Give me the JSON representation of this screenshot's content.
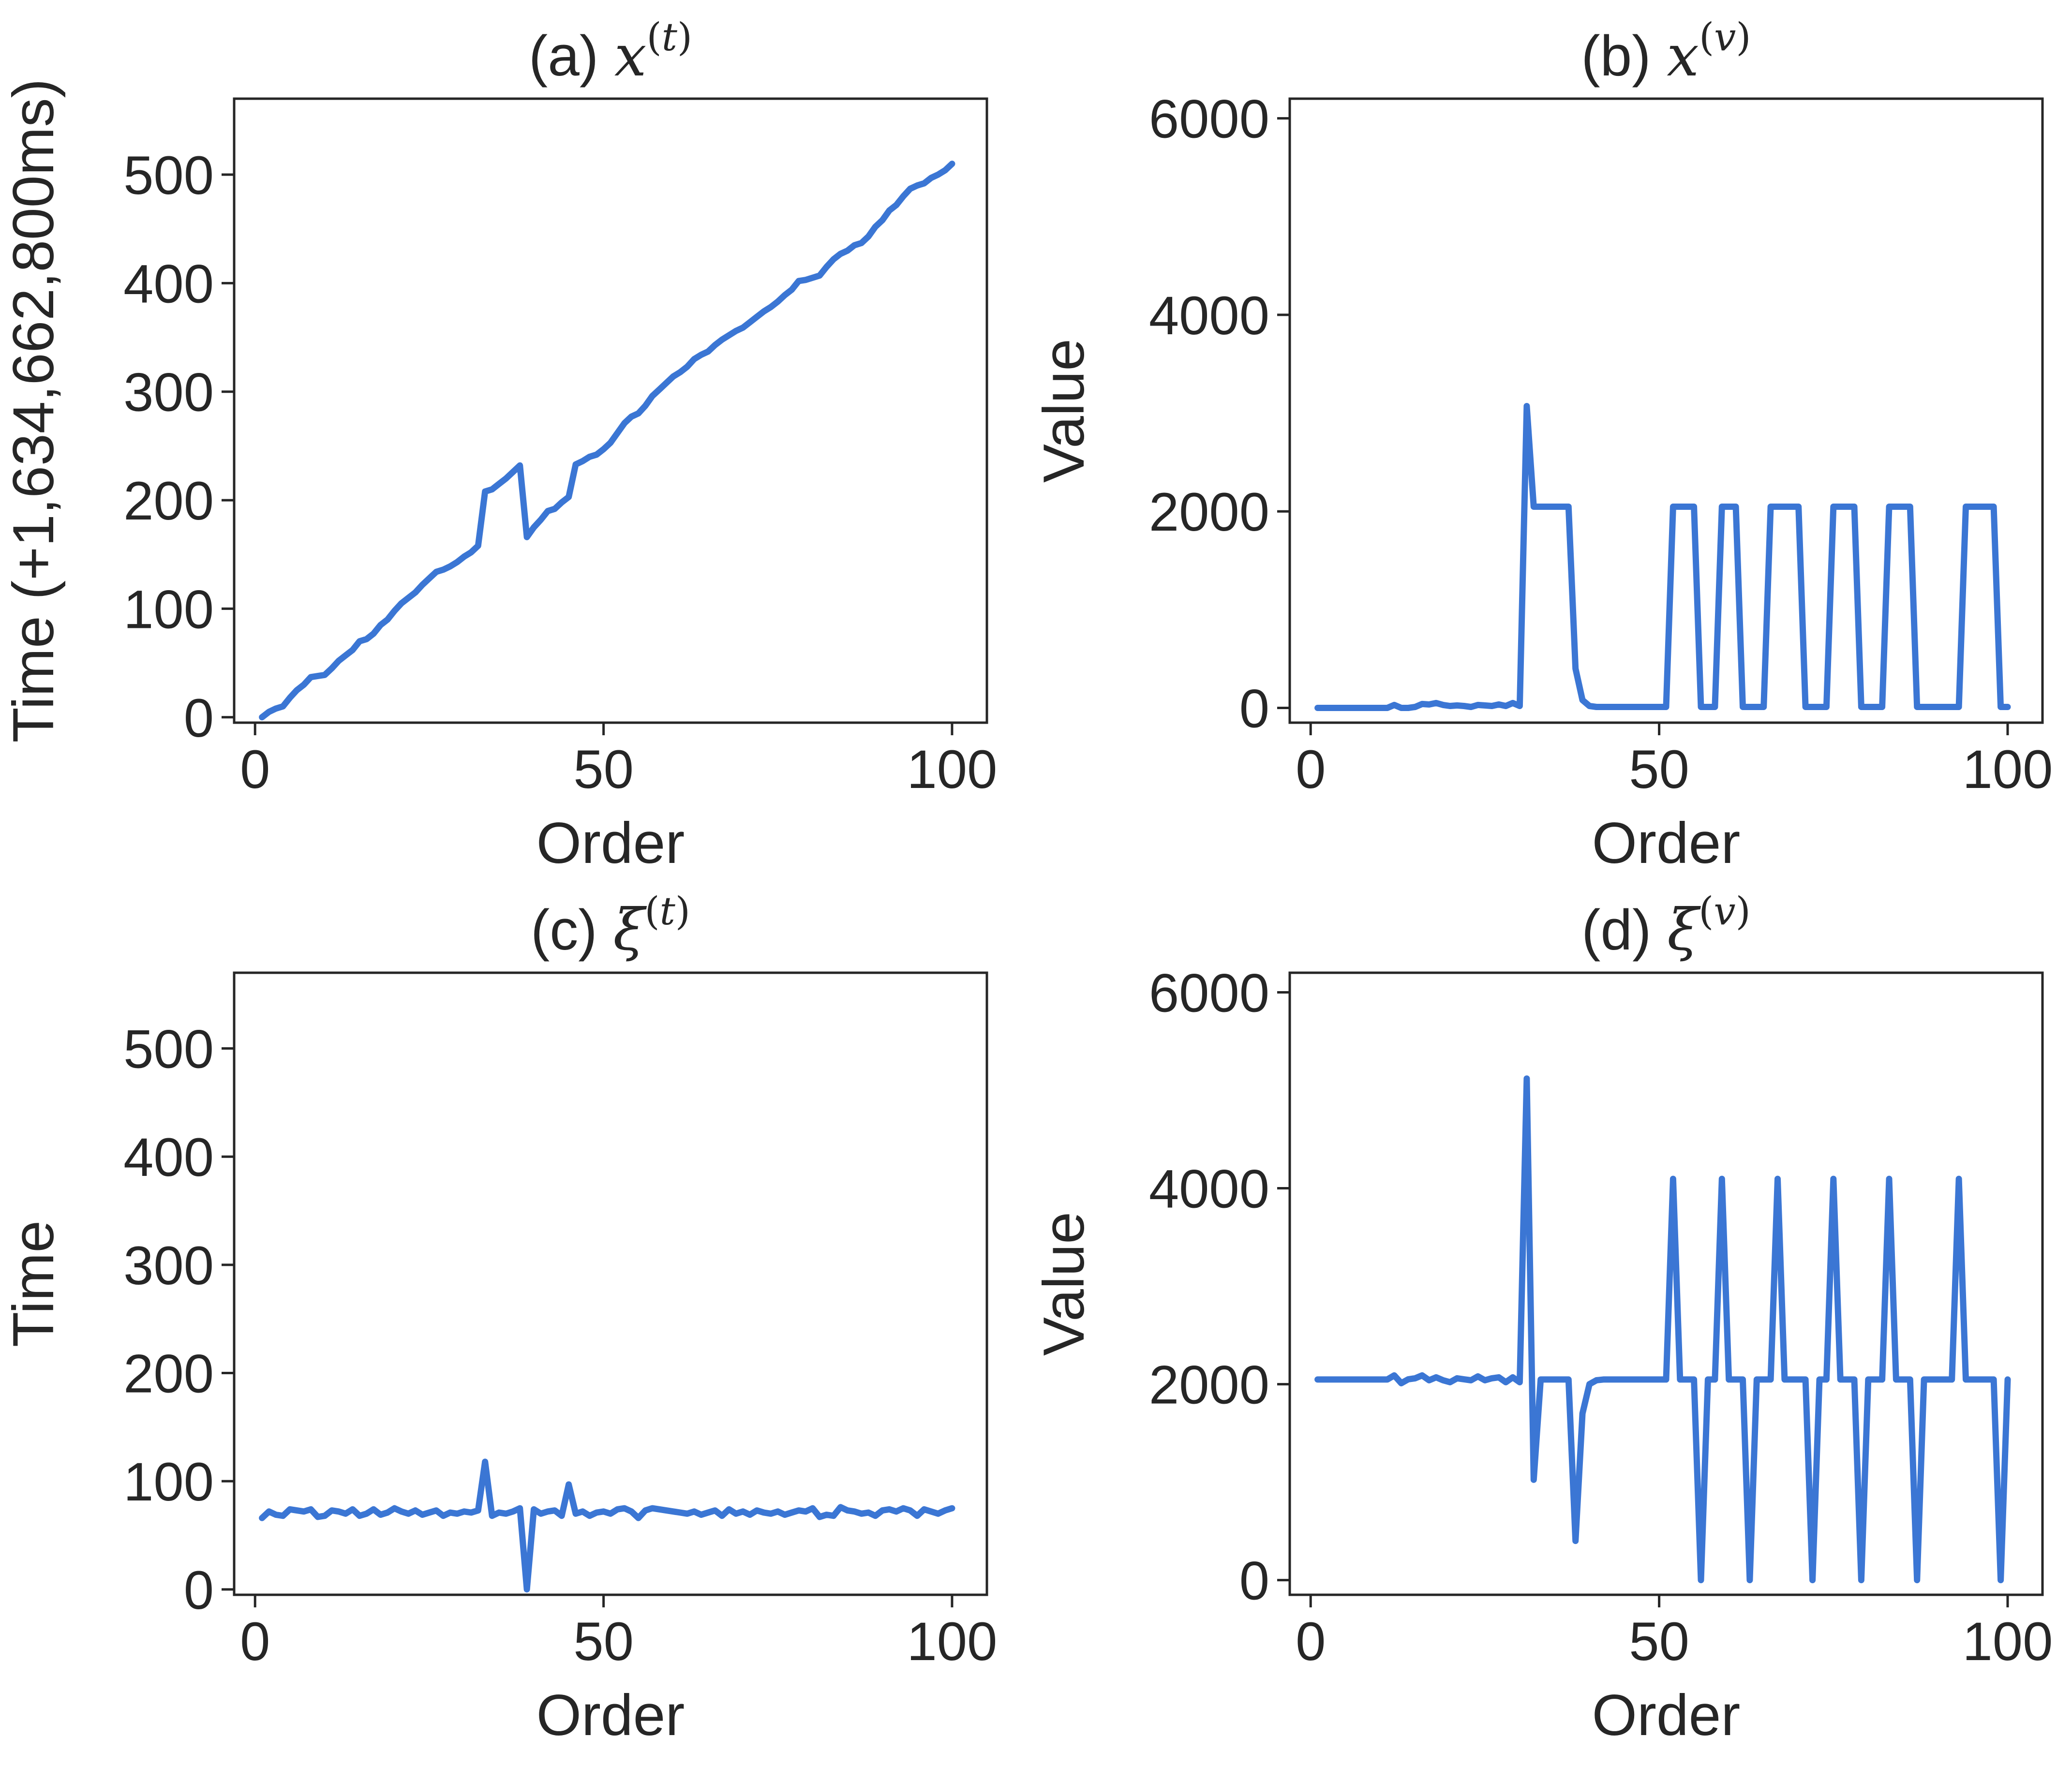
{
  "colors": {
    "line": "#3b76d4",
    "axes": "#262626",
    "background": "#ffffff"
  },
  "chart_data": [
    {
      "id": "a",
      "type": "line",
      "title": {
        "prefix": "(a) ",
        "symbol": "x",
        "superscript": "t"
      },
      "xlabel": "Order",
      "ylabel": "Time (+1,634,662,800ms)",
      "xlim": [
        -3,
        105
      ],
      "ylim": [
        -5,
        570
      ],
      "xticks": [
        0,
        50,
        100
      ],
      "yticks": [
        0,
        100,
        200,
        300,
        400,
        500
      ],
      "series": [
        {
          "x": [
            1,
            2,
            3,
            4,
            5,
            6,
            7,
            8,
            9,
            10,
            11,
            12,
            13,
            14,
            15,
            16,
            17,
            18,
            19,
            20,
            21,
            22,
            23,
            24,
            25,
            26,
            27,
            28,
            29,
            30,
            31,
            32,
            33,
            34,
            35,
            36,
            37,
            38,
            39,
            40,
            41,
            42,
            43,
            44,
            45,
            46,
            47,
            48,
            49,
            50,
            51,
            52,
            53,
            54,
            55,
            56,
            57,
            58,
            59,
            60,
            61,
            62,
            63,
            64,
            65,
            66,
            67,
            68,
            69,
            70,
            71,
            72,
            73,
            74,
            75,
            76,
            77,
            78,
            79,
            80,
            81,
            82,
            83,
            84,
            85,
            86,
            87,
            88,
            89,
            90,
            91,
            92,
            93,
            94,
            95,
            96,
            97,
            98,
            99,
            100
          ],
          "y": [
            0,
            5,
            8,
            10,
            18,
            25,
            30,
            37,
            38,
            39,
            45,
            52,
            57,
            62,
            70,
            72,
            77,
            85,
            90,
            98,
            105,
            110,
            115,
            122,
            128,
            134,
            136,
            139,
            143,
            148,
            152,
            158,
            208,
            210,
            215,
            220,
            226,
            232,
            166,
            175,
            182,
            190,
            192,
            198,
            203,
            233,
            236,
            240,
            242,
            247,
            253,
            262,
            271,
            277,
            280,
            287,
            296,
            302,
            308,
            314,
            318,
            323,
            330,
            334,
            337,
            343,
            348,
            352,
            356,
            359,
            364,
            369,
            374,
            378,
            383,
            389,
            394,
            402,
            403,
            405,
            407,
            415,
            422,
            427,
            430,
            435,
            437,
            443,
            452,
            458,
            467,
            472,
            480,
            487,
            490,
            492,
            497,
            500,
            504,
            510
          ]
        }
      ]
    },
    {
      "id": "b",
      "type": "line",
      "title": {
        "prefix": "(b) ",
        "symbol": "x",
        "superscript": "v"
      },
      "xlabel": "Order",
      "ylabel": "Value",
      "xlim": [
        -3,
        105
      ],
      "ylim": [
        -150,
        6200
      ],
      "xticks": [
        0,
        50,
        100
      ],
      "yticks": [
        0,
        2000,
        4000,
        6000
      ],
      "series": [
        {
          "x": [
            1,
            2,
            3,
            4,
            5,
            6,
            7,
            8,
            9,
            10,
            11,
            12,
            13,
            14,
            15,
            16,
            17,
            18,
            19,
            20,
            21,
            22,
            23,
            24,
            25,
            26,
            27,
            28,
            29,
            30,
            31,
            32,
            33,
            34,
            35,
            36,
            37,
            38,
            39,
            40,
            41,
            42,
            43,
            44,
            45,
            46,
            47,
            48,
            49,
            50,
            51,
            52,
            53,
            54,
            55,
            56,
            57,
            58,
            59,
            60,
            61,
            62,
            63,
            64,
            65,
            66,
            67,
            68,
            69,
            70,
            71,
            72,
            73,
            74,
            75,
            76,
            77,
            78,
            79,
            80,
            81,
            82,
            83,
            84,
            85,
            86,
            87,
            88,
            89,
            90,
            91,
            92,
            93,
            94,
            95,
            96,
            97,
            98,
            99,
            100
          ],
          "y": [
            0,
            0,
            0,
            0,
            0,
            0,
            0,
            0,
            0,
            0,
            0,
            30,
            0,
            0,
            10,
            40,
            35,
            50,
            30,
            20,
            25,
            20,
            10,
            30,
            25,
            20,
            35,
            20,
            50,
            20,
            3072,
            2048,
            2048,
            2048,
            2048,
            2048,
            2048,
            400,
            80,
            20,
            10,
            10,
            10,
            10,
            10,
            10,
            10,
            10,
            10,
            10,
            10,
            2048,
            2048,
            2048,
            2048,
            10,
            10,
            10,
            2048,
            2048,
            2048,
            10,
            10,
            10,
            10,
            2048,
            2048,
            2048,
            2048,
            2048,
            10,
            10,
            10,
            10,
            2048,
            2048,
            2048,
            2048,
            10,
            10,
            10,
            10,
            2048,
            2048,
            2048,
            2048,
            10,
            10,
            10,
            10,
            10,
            10,
            10,
            2048,
            2048,
            2048,
            2048,
            2048,
            10,
            10
          ]
        }
      ]
    },
    {
      "id": "c",
      "type": "line",
      "title": {
        "prefix": "(c) ",
        "symbol": "ξ",
        "superscript": "t"
      },
      "xlabel": "Order",
      "ylabel": "Time",
      "xlim": [
        -3,
        105
      ],
      "ylim": [
        -5,
        570
      ],
      "xticks": [
        0,
        50,
        100
      ],
      "yticks": [
        0,
        100,
        200,
        300,
        400,
        500
      ],
      "series": [
        {
          "x": [
            1,
            2,
            3,
            4,
            5,
            6,
            7,
            8,
            9,
            10,
            11,
            12,
            13,
            14,
            15,
            16,
            17,
            18,
            19,
            20,
            21,
            22,
            23,
            24,
            25,
            26,
            27,
            28,
            29,
            30,
            31,
            32,
            33,
            34,
            35,
            36,
            37,
            38,
            39,
            40,
            41,
            42,
            43,
            44,
            45,
            46,
            47,
            48,
            49,
            50,
            51,
            52,
            53,
            54,
            55,
            56,
            57,
            58,
            59,
            60,
            61,
            62,
            63,
            64,
            65,
            66,
            67,
            68,
            69,
            70,
            71,
            72,
            73,
            74,
            75,
            76,
            77,
            78,
            79,
            80,
            81,
            82,
            83,
            84,
            85,
            86,
            87,
            88,
            89,
            90,
            91,
            92,
            93,
            94,
            95,
            96,
            97,
            98,
            99,
            100
          ],
          "y": [
            66,
            72,
            69,
            68,
            74,
            73,
            72,
            74,
            67,
            68,
            73,
            72,
            70,
            74,
            68,
            70,
            74,
            69,
            71,
            75,
            72,
            70,
            73,
            69,
            71,
            73,
            68,
            71,
            70,
            72,
            71,
            73,
            118,
            68,
            71,
            70,
            72,
            75,
            0,
            74,
            70,
            72,
            73,
            68,
            97,
            70,
            72,
            68,
            71,
            72,
            70,
            74,
            75,
            72,
            66,
            73,
            75,
            74,
            73,
            72,
            71,
            70,
            72,
            69,
            71,
            73,
            68,
            74,
            70,
            72,
            69,
            73,
            71,
            70,
            72,
            69,
            71,
            73,
            72,
            75,
            67,
            69,
            68,
            76,
            73,
            72,
            70,
            71,
            68,
            73,
            74,
            72,
            75,
            73,
            68,
            74,
            72,
            70,
            73,
            75
          ]
        }
      ]
    },
    {
      "id": "d",
      "type": "line",
      "title": {
        "prefix": "(d) ",
        "symbol": "ξ",
        "superscript": "v"
      },
      "xlabel": "Order",
      "ylabel": "Value",
      "xlim": [
        -3,
        105
      ],
      "ylim": [
        -150,
        6200
      ],
      "xticks": [
        0,
        50,
        100
      ],
      "yticks": [
        0,
        2000,
        4000,
        6000
      ],
      "series": [
        {
          "x": [
            1,
            2,
            3,
            4,
            5,
            6,
            7,
            8,
            9,
            10,
            11,
            12,
            13,
            14,
            15,
            16,
            17,
            18,
            19,
            20,
            21,
            22,
            23,
            24,
            25,
            26,
            27,
            28,
            29,
            30,
            31,
            32,
            33,
            34,
            35,
            36,
            37,
            38,
            39,
            40,
            41,
            42,
            43,
            44,
            45,
            46,
            47,
            48,
            49,
            50,
            51,
            52,
            53,
            54,
            55,
            56,
            57,
            58,
            59,
            60,
            61,
            62,
            63,
            64,
            65,
            66,
            67,
            68,
            69,
            70,
            71,
            72,
            73,
            74,
            75,
            76,
            77,
            78,
            79,
            80,
            81,
            82,
            83,
            84,
            85,
            86,
            87,
            88,
            89,
            90,
            91,
            92,
            93,
            94,
            95,
            96,
            97,
            98,
            99,
            100
          ],
          "y": [
            2048,
            2048,
            2048,
            2048,
            2048,
            2048,
            2048,
            2048,
            2048,
            2048,
            2048,
            2090,
            2010,
            2050,
            2060,
            2090,
            2040,
            2070,
            2040,
            2020,
            2060,
            2050,
            2040,
            2080,
            2040,
            2060,
            2070,
            2020,
            2070,
            2020,
            5120,
            1024,
            2048,
            2048,
            2048,
            2048,
            2048,
            400,
            1700,
            2000,
            2040,
            2048,
            2048,
            2048,
            2048,
            2048,
            2048,
            2048,
            2048,
            2048,
            2048,
            4096,
            2048,
            2048,
            2048,
            0,
            2048,
            2048,
            4096,
            2048,
            2048,
            2048,
            0,
            2048,
            2048,
            2048,
            4096,
            2048,
            2048,
            2048,
            2048,
            0,
            2048,
            2048,
            4096,
            2048,
            2048,
            2048,
            0,
            2048,
            2048,
            2048,
            4096,
            2048,
            2048,
            2048,
            0,
            2048,
            2048,
            2048,
            2048,
            2048,
            4096,
            2048,
            2048,
            2048,
            2048,
            2048,
            0,
            2048
          ]
        }
      ]
    }
  ]
}
